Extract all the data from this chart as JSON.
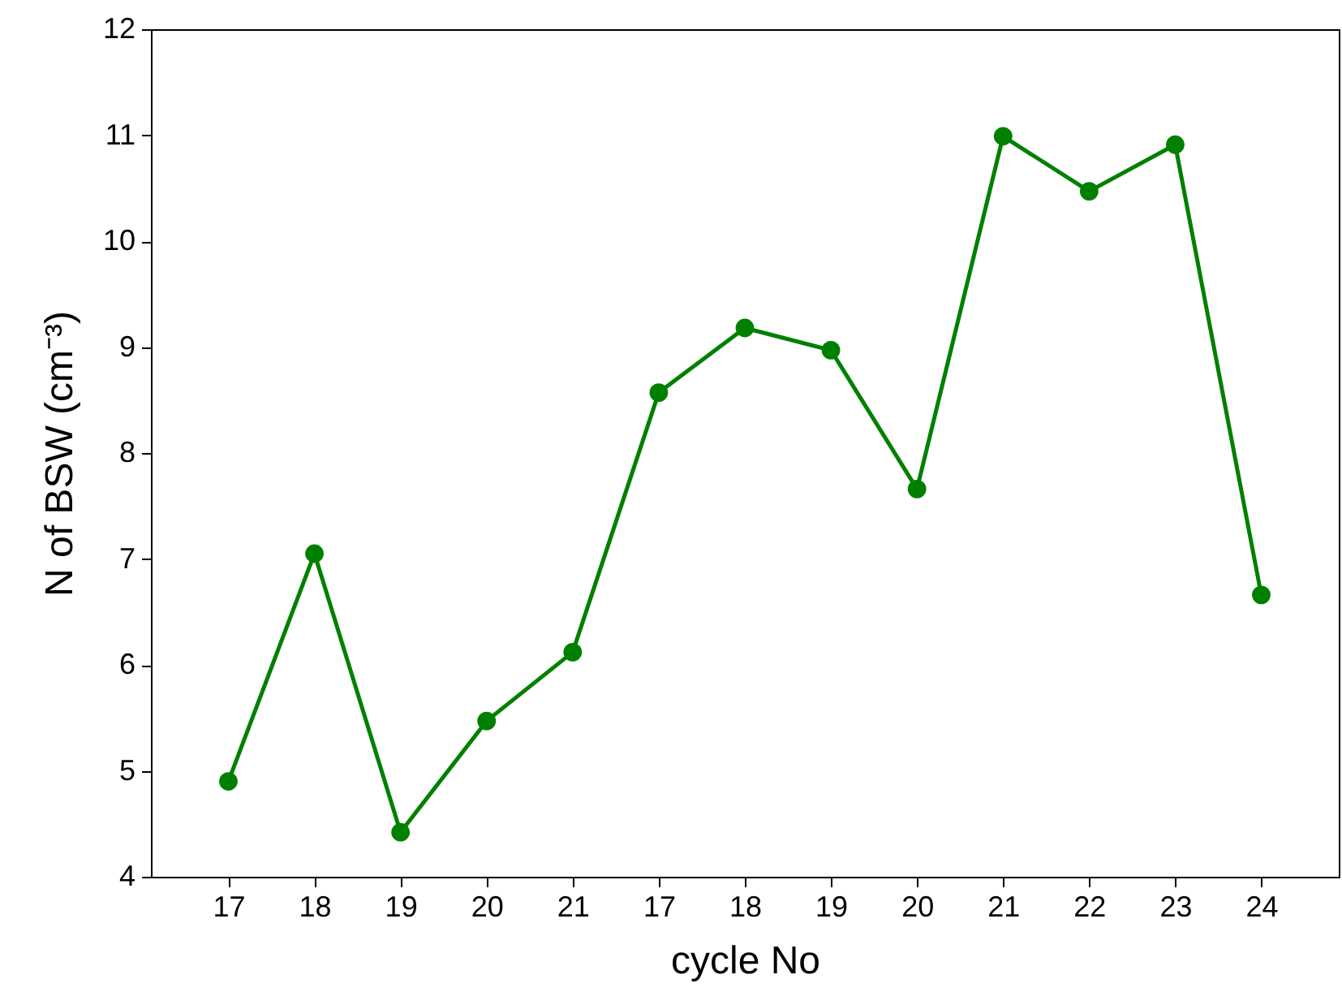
{
  "chart_data": {
    "type": "line",
    "xlabel": "cycle No",
    "ylabel": "N of BSW (cm⁻³)",
    "categories": [
      "17",
      "18",
      "19",
      "20",
      "21",
      "17",
      "18",
      "19",
      "20",
      "21",
      "22",
      "23",
      "24"
    ],
    "series": [
      {
        "color": "#008000",
        "values": [
          4.9,
          7.05,
          4.42,
          5.47,
          6.12,
          8.57,
          9.18,
          8.97,
          7.66,
          10.99,
          10.47,
          10.91,
          6.66
        ]
      }
    ],
    "ylim": [
      4,
      12
    ],
    "yticks": [
      4,
      5,
      6,
      7,
      8,
      9,
      10,
      11,
      12
    ],
    "marker": "circle",
    "line_style": "solid",
    "grid": false
  }
}
